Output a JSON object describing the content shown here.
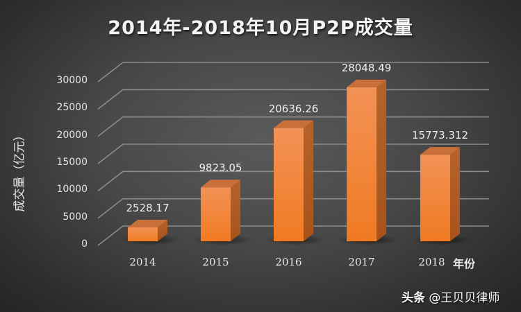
{
  "chart_data": {
    "type": "bar",
    "subtype": "3d-column",
    "title": "2014年-2018年10月P2P成交量",
    "xlabel": "年份",
    "ylabel": "成交量（亿元）",
    "categories": [
      "2014",
      "2015",
      "2016",
      "2017",
      "2018"
    ],
    "values": [
      2528.17,
      9823.05,
      20636.26,
      28048.49,
      15773.312
    ],
    "data_labels": [
      "2528.17",
      "9823.05",
      "20636.26",
      "28048.49",
      "15773.312"
    ],
    "ylim": [
      0,
      30000
    ],
    "yticks": [
      "0",
      "5000",
      "10000",
      "15000",
      "20000",
      "25000",
      "30000"
    ],
    "grid": true,
    "legend": null,
    "colors": {
      "bar": "#f5822a",
      "bar_top": "#e9894a",
      "bar_side": "#b45a1f",
      "grid": "#8a8a8a"
    }
  },
  "watermark": {
    "brand": "头条",
    "handle": "@王贝贝律师"
  }
}
